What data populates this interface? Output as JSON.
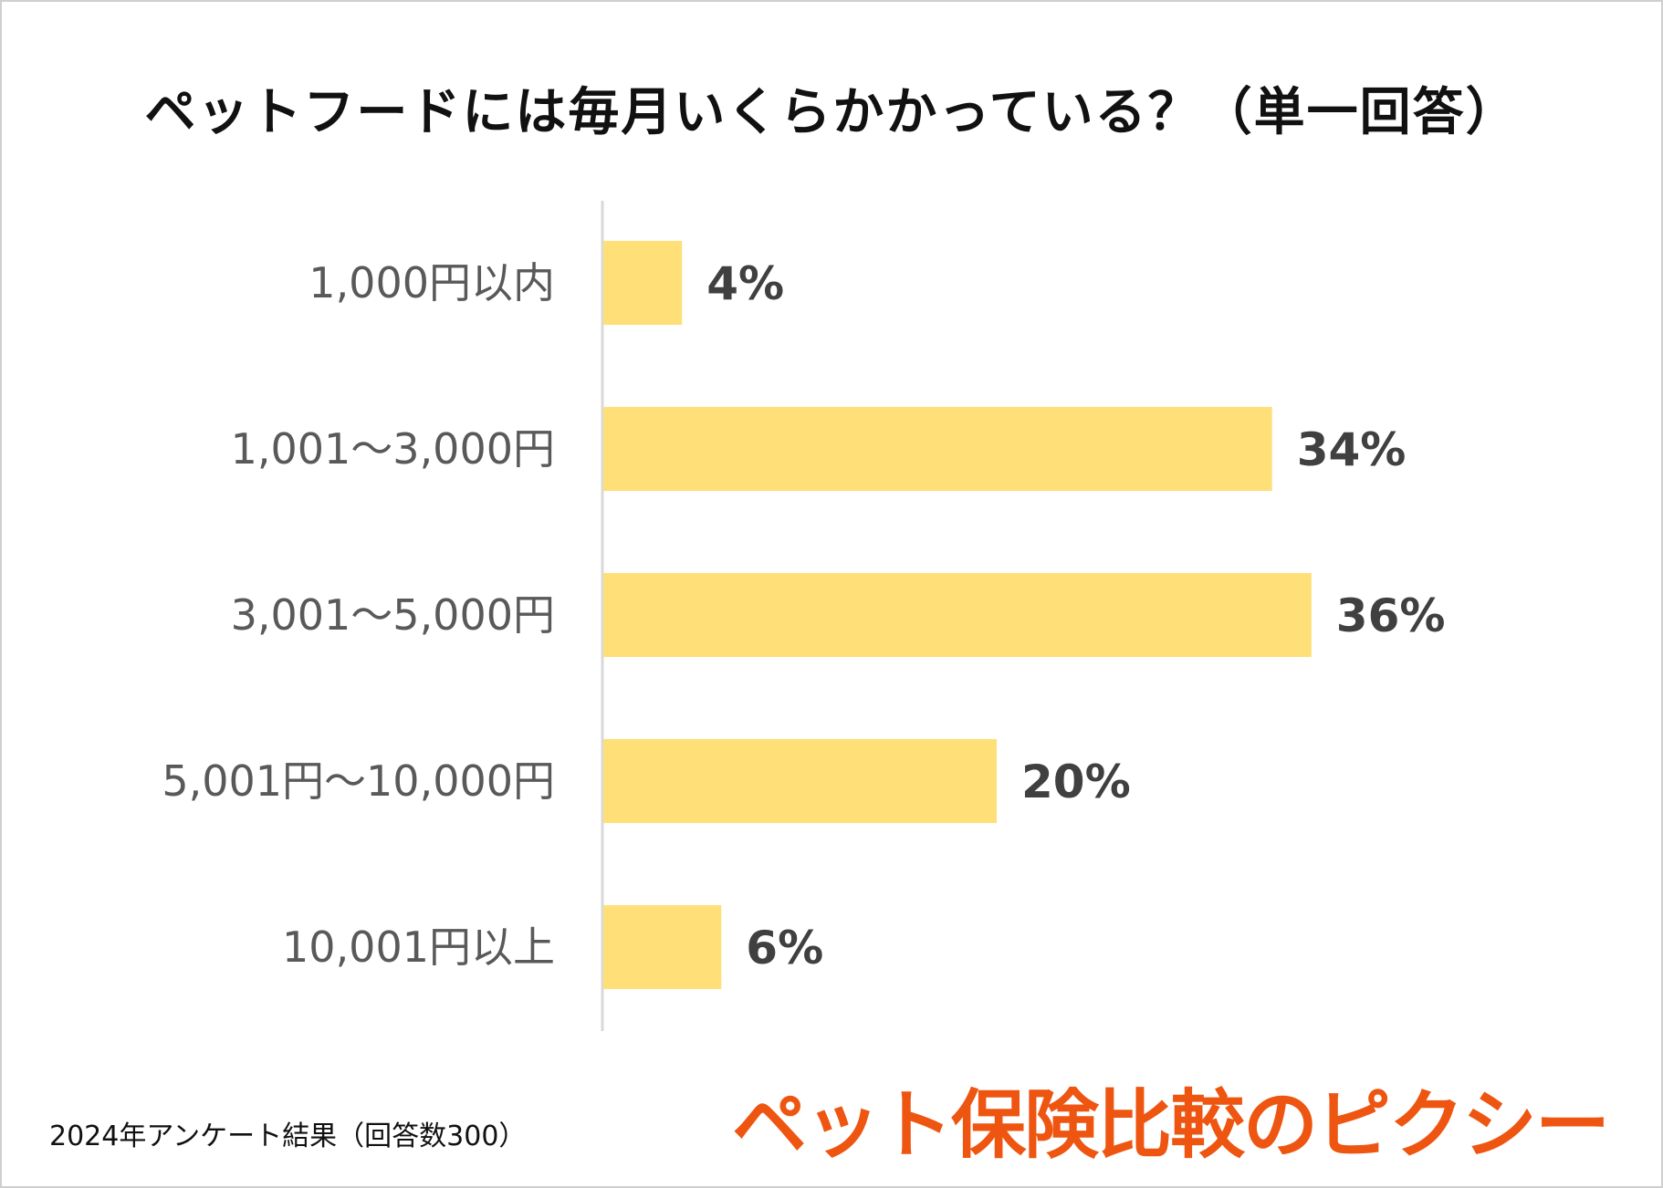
{
  "chart_data": {
    "type": "bar",
    "orientation": "horizontal",
    "title": "ペットフードには毎月いくらかかっている？（単一回答）",
    "categories": [
      "1,000円以内",
      "1,001～3,000円",
      "3,001～5,000円",
      "5,001円～10,000円",
      "10,001円以上"
    ],
    "values": [
      4,
      34,
      36,
      20,
      6
    ],
    "value_labels": [
      "4%",
      "34%",
      "36%",
      "20%",
      "6%"
    ],
    "unit": "%",
    "xlim": [
      0,
      40
    ],
    "bar_color": "#FFDF78",
    "axis_color": "#D9D9D9",
    "grid": false,
    "legend": "none"
  },
  "footnote": "2024年アンケート結果（回答数300）",
  "brand": "ペット保険比較のピクシー",
  "colors": {
    "brand": "#EE5511",
    "title": "#111111",
    "tick_label": "#595959",
    "data_label": "#404040"
  }
}
